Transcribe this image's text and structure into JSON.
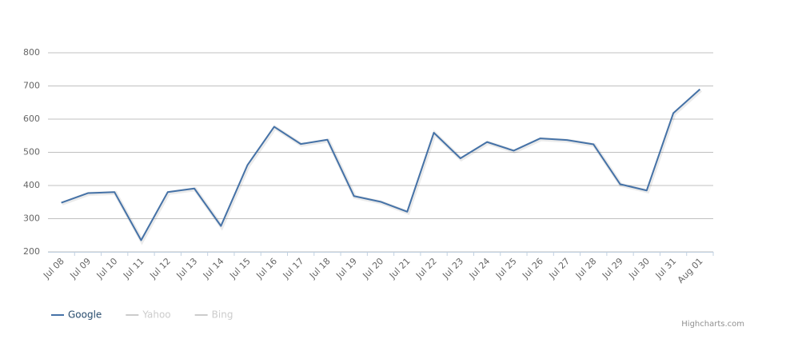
{
  "chart_data": {
    "type": "line",
    "categories": [
      "Jul 08",
      "Jul 09",
      "Jul 10",
      "Jul 11",
      "Jul 12",
      "Jul 13",
      "Jul 14",
      "Jul 15",
      "Jul 16",
      "Jul 17",
      "Jul 18",
      "Jul 19",
      "Jul 20",
      "Jul 21",
      "Jul 22",
      "Jul 23",
      "Jul 24",
      "Jul 25",
      "Jul 26",
      "Jul 27",
      "Jul 28",
      "Jul 29",
      "Jul 30",
      "Jul 31",
      "Aug 01"
    ],
    "series": [
      {
        "name": "Google",
        "color": "#4572A7",
        "values": [
          348,
          377,
          380,
          235,
          380,
          391,
          278,
          462,
          577,
          525,
          538,
          368,
          351,
          321,
          559,
          482,
          531,
          505,
          542,
          537,
          524,
          404,
          385,
          618,
          690
        ]
      },
      {
        "name": "Yahoo",
        "color": "#cccccc"
      },
      {
        "name": "Bing",
        "color": "#cccccc"
      }
    ],
    "ylim": [
      200,
      800
    ],
    "yticks": [
      200,
      300,
      400,
      500,
      600,
      700,
      800
    ],
    "grid": true,
    "legend": "bottom-left",
    "credits": "Highcharts.com"
  }
}
